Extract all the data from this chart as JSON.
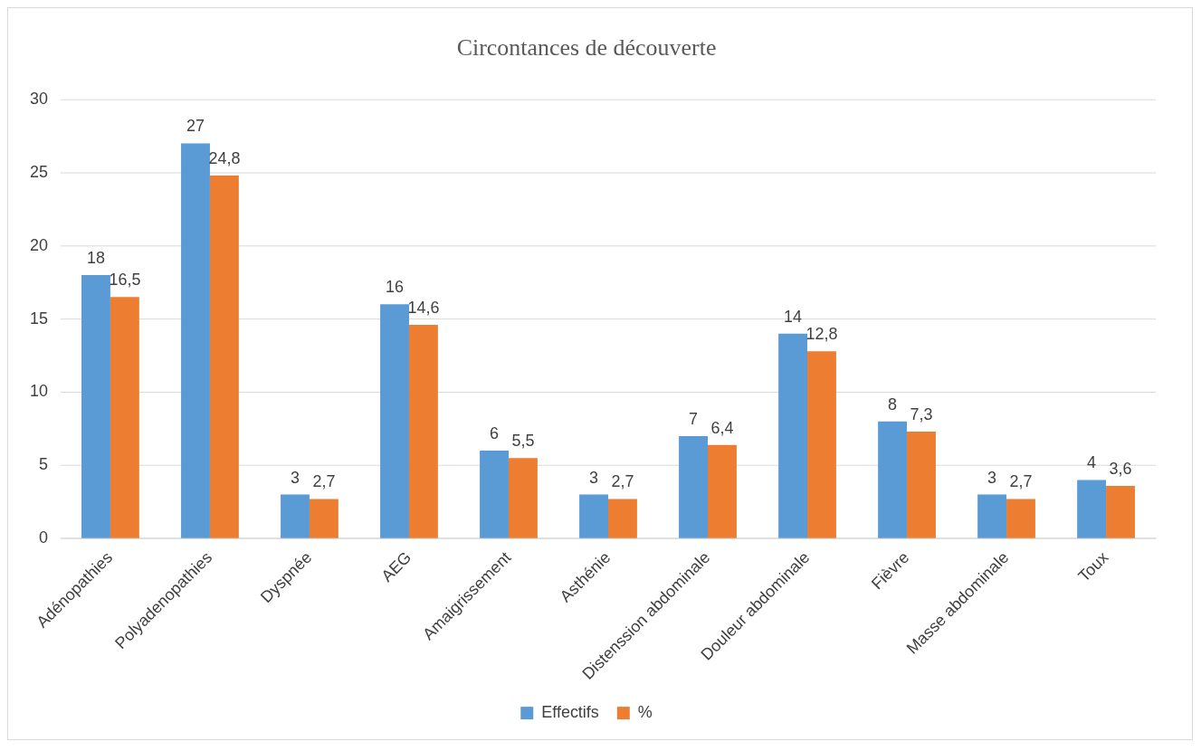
{
  "chart_data": {
    "type": "bar",
    "title": "Circontances de découverte",
    "categories": [
      "Adénopathies",
      "Polyadenopathies",
      "Dyspnée",
      "AEG",
      "Amaigrissement",
      "Asthénie",
      "Distenssion abdominale",
      "Douleur abdominale",
      "Fièvre",
      "Masse abdominale",
      "Toux"
    ],
    "series": [
      {
        "name": "Effectifs",
        "color": "#5b9bd5",
        "values": [
          18,
          27,
          3,
          16,
          6,
          3,
          7,
          14,
          8,
          3,
          4
        ],
        "value_labels": [
          "18",
          "27",
          "3",
          "16",
          "6",
          "3",
          "7",
          "14",
          "8",
          "3",
          "4"
        ]
      },
      {
        "name": "%",
        "color": "#ed7d31",
        "values": [
          16.5,
          24.8,
          2.7,
          14.6,
          5.5,
          2.7,
          6.4,
          12.8,
          7.3,
          2.7,
          3.6
        ],
        "value_labels": [
          "16,5",
          "24,8",
          "2,7",
          "14,6",
          "5,5",
          "2,7",
          "6,4",
          "12,8",
          "7,3",
          "2,7",
          "3,6"
        ]
      }
    ],
    "ylim": [
      0,
      30
    ],
    "yticks": [
      0,
      5,
      10,
      15,
      20,
      25,
      30
    ],
    "grid": "y",
    "legend": "bottom"
  }
}
